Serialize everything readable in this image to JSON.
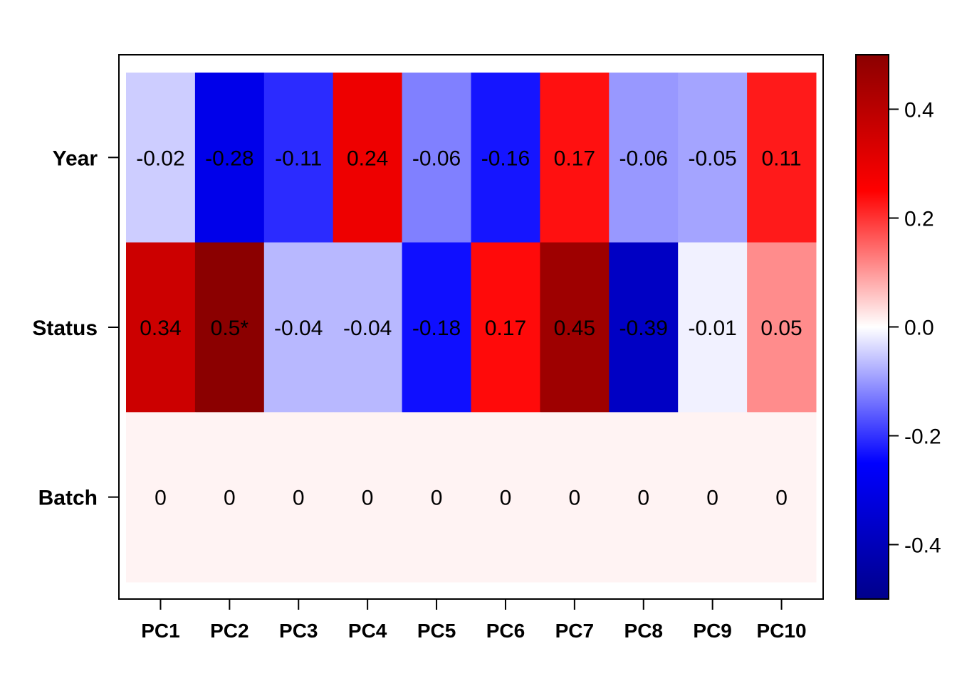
{
  "chart_data": {
    "type": "heatmap",
    "rows": [
      "Year",
      "Status",
      "Batch"
    ],
    "columns": [
      "PC1",
      "PC2",
      "PC3",
      "PC4",
      "PC5",
      "PC6",
      "PC7",
      "PC8",
      "PC9",
      "PC10"
    ],
    "values": [
      [
        -0.02,
        -0.28,
        -0.11,
        0.24,
        -0.06,
        -0.16,
        0.17,
        -0.06,
        -0.05,
        0.11
      ],
      [
        0.34,
        0.5,
        -0.04,
        -0.04,
        -0.18,
        0.17,
        0.45,
        -0.39,
        -0.01,
        0.05
      ],
      [
        0,
        0,
        0,
        0,
        0,
        0,
        0,
        0,
        0,
        0
      ]
    ],
    "cell_labels": [
      [
        "-0.02",
        "-0.28",
        "-0.11",
        "0.24",
        "-0.06",
        "-0.16",
        "0.17",
        "-0.06",
        "-0.05",
        "0.11"
      ],
      [
        "0.34",
        "0.5*",
        "-0.04",
        "-0.04",
        "-0.18",
        "0.17",
        "0.45",
        "-0.39",
        "-0.01",
        "0.05"
      ],
      [
        "0",
        "0",
        "0",
        "0",
        "0",
        "0",
        "0",
        "0",
        "0",
        "0"
      ]
    ],
    "color_scale": {
      "range": [
        -0.5,
        0.5
      ],
      "ticks": [
        0.4,
        0.2,
        0.0,
        -0.2,
        -0.4
      ],
      "tick_labels": [
        "0.4",
        "0.2",
        "0.0",
        "-0.2",
        "-0.4"
      ],
      "colors": [
        "#00008B",
        "#0000FF",
        "#FFFFFF",
        "#FF0000",
        "#8B0000"
      ]
    },
    "cell_colors": [
      [
        "#CDCDFF",
        "#0000EA",
        "#2B2BFF",
        "#EE0000",
        "#8080FF",
        "#1515FF",
        "#FF1010",
        "#9898FF",
        "#A4A4FF",
        "#FF1A1A"
      ],
      [
        "#CC0000",
        "#8B0000",
        "#B8B8FF",
        "#B8B8FF",
        "#0F0FFF",
        "#FF0A0A",
        "#9E0000",
        "#0000C4",
        "#F1F1FF",
        "#FF8C8C"
      ],
      [
        "#FFF3F3",
        "#FFF3F3",
        "#FFF3F3",
        "#FFF3F3",
        "#FFF3F3",
        "#FFF3F3",
        "#FFF3F3",
        "#FFF3F3",
        "#FFF3F3",
        "#FFF3F3"
      ]
    ]
  }
}
